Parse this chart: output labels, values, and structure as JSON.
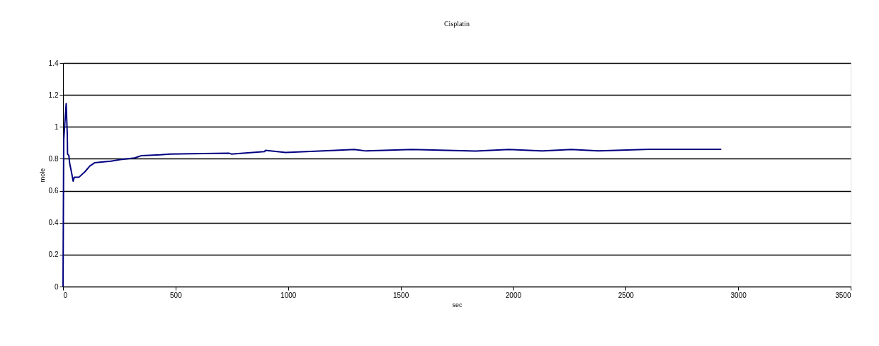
{
  "chart_data": {
    "type": "line",
    "title": "Cisplatin",
    "xlabel": "sec",
    "ylabel": "mole",
    "series": [
      {
        "color": "#000080",
        "x": [
          0,
          3,
          14,
          19,
          20,
          26,
          29,
          37,
          45,
          50,
          71,
          98,
          119,
          140,
          171,
          213,
          255,
          318,
          349,
          433,
          475,
          737,
          748,
          895,
          900,
          989,
          1210,
          1294,
          1346,
          1551,
          1834,
          1981,
          2133,
          2259,
          2380,
          2605,
          2925
        ],
        "values": [
          0,
          0.92,
          1.145,
          0.945,
          0.83,
          0.82,
          0.775,
          0.72,
          0.66,
          0.685,
          0.685,
          0.72,
          0.755,
          0.775,
          0.78,
          0.785,
          0.795,
          0.805,
          0.82,
          0.825,
          0.83,
          0.835,
          0.83,
          0.845,
          0.853,
          0.84,
          0.853,
          0.858,
          0.849,
          0.858,
          0.848,
          0.858,
          0.849,
          0.858,
          0.849,
          0.86,
          0.86
        ]
      }
    ],
    "xlim": [
      0,
      3500
    ],
    "xticks": [
      0,
      500,
      1000,
      1500,
      2000,
      2500,
      3000,
      3500
    ],
    "ylim": [
      0,
      1.4
    ],
    "yticks": [
      0,
      0.2,
      0.4,
      0.6,
      0.8,
      1,
      1.2,
      1.4
    ],
    "grid": "y",
    "marker": "none",
    "line_style": "solid"
  }
}
